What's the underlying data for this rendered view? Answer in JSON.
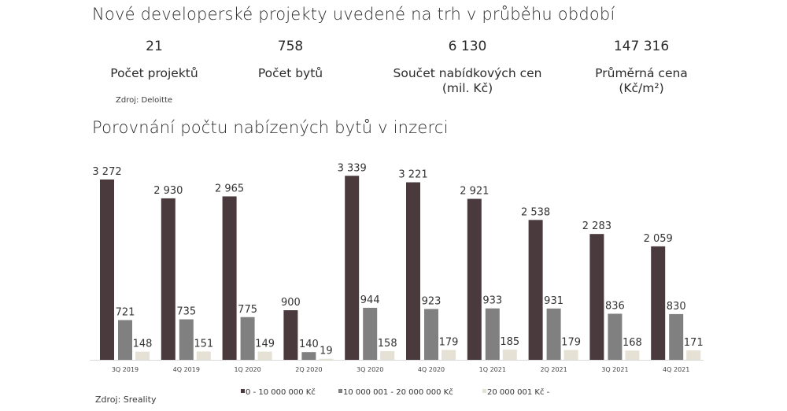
{
  "title": "Nové developerské projekty uvedené na trh v průběhu období",
  "kpis": [
    {
      "value": "21",
      "label": "Počet projektů",
      "label2": ""
    },
    {
      "value": "758",
      "label": "Počet bytů",
      "label2": ""
    },
    {
      "value": "6 130",
      "label": "Součet nabídkových cen",
      "label2": "(mil. Kč)"
    },
    {
      "value": "147 316",
      "label": "Průměrná cena",
      "label2": "(Kč/m²)"
    }
  ],
  "kpi_source": "Zdroj: Deloitte",
  "chart_source": "Zdroj: Sreality",
  "colors": {
    "s1": "#4a3a3e",
    "s2": "#808080",
    "s3": "#e6e1d5",
    "axis": "#d9d9d9"
  },
  "chart_data": {
    "type": "bar",
    "title": "Porovnání počtu nabízených bytů v inzerci",
    "xlabel": "",
    "ylabel": "",
    "ylim": [
      0,
      3400
    ],
    "grid": false,
    "legend_position": "bottom",
    "categories": [
      "3Q 2019",
      "4Q 2019",
      "1Q 2020",
      "2Q 2020",
      "3Q 2020",
      "4Q 2020",
      "1Q 2021",
      "2Q 2021",
      "3Q 2021",
      "4Q 2021"
    ],
    "series": [
      {
        "name": "0 - 10 000 000 Kč",
        "values": [
          3272,
          2930,
          2965,
          900,
          3339,
          3221,
          2921,
          2538,
          2283,
          2059
        ],
        "labels": [
          "3 272",
          "2 930",
          "2 965",
          "900",
          "3 339",
          "3 221",
          "2 921",
          "2 538",
          "2 283",
          "2 059"
        ]
      },
      {
        "name": "10 000 001 - 20 000 000 Kč",
        "values": [
          721,
          735,
          775,
          140,
          944,
          923,
          933,
          931,
          836,
          830
        ],
        "labels": [
          "721",
          "735",
          "775",
          "140",
          "944",
          "923",
          "933",
          "931",
          "836",
          "830"
        ]
      },
      {
        "name": "20 000 001 Kč -",
        "values": [
          148,
          151,
          149,
          19,
          158,
          179,
          185,
          179,
          168,
          171
        ],
        "labels": [
          "148",
          "151",
          "149",
          "19",
          "158",
          "179",
          "185",
          "179",
          "168",
          "171"
        ]
      }
    ]
  }
}
